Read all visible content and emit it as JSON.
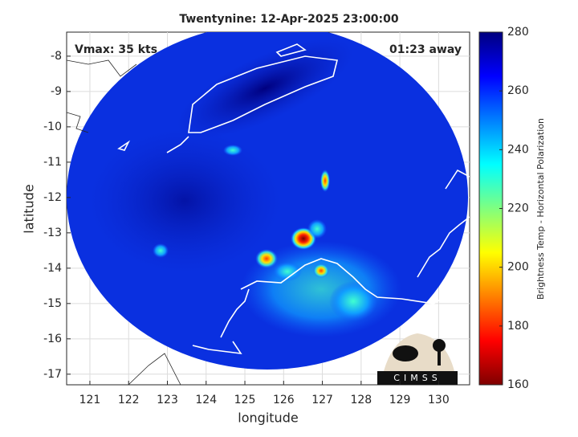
{
  "chart_data": {
    "type": "map",
    "title": "Twentynine: 12-Apr-2025 23:00:00",
    "annotations": [
      "Vmax: 35 kts",
      "01:23 away"
    ],
    "x_label": "longitude",
    "y_label": "latitude",
    "xlim": [
      120.4,
      130.8
    ],
    "xticks": [
      121,
      122,
      123,
      124,
      125,
      126,
      127,
      128,
      129,
      130
    ],
    "ylim": [
      -17.3,
      -7.32
    ],
    "yticks": [
      -17,
      -16,
      -15,
      -14,
      -13,
      -12,
      -11,
      -10,
      -9,
      -8
    ],
    "grid": true,
    "colorbar": {
      "label": "Brightness Temp - Horizontal Polarization",
      "lim": [
        160,
        280
      ],
      "ticks": [
        160,
        180,
        200,
        220,
        240,
        260,
        280
      ]
    },
    "logo": "CIMSS"
  }
}
